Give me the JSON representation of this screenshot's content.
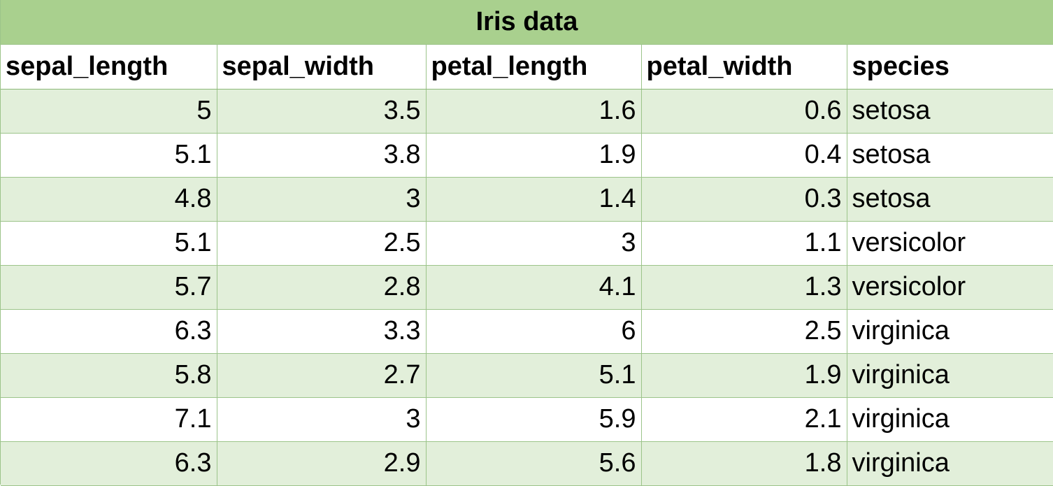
{
  "chart_data": {
    "type": "table",
    "title": "Iris data",
    "columns": [
      "sepal_length",
      "sepal_width",
      "petal_length",
      "petal_width",
      "species"
    ],
    "rows": [
      [
        "5",
        "3.5",
        "1.6",
        "0.6",
        "setosa"
      ],
      [
        "5.1",
        "3.8",
        "1.9",
        "0.4",
        "setosa"
      ],
      [
        "4.8",
        "3",
        "1.4",
        "0.3",
        "setosa"
      ],
      [
        "5.1",
        "2.5",
        "3",
        "1.1",
        "versicolor"
      ],
      [
        "5.7",
        "2.8",
        "4.1",
        "1.3",
        "versicolor"
      ],
      [
        "6.3",
        "3.3",
        "6",
        "2.5",
        "virginica"
      ],
      [
        "5.8",
        "2.7",
        "5.1",
        "1.9",
        "virginica"
      ],
      [
        "7.1",
        "3",
        "5.9",
        "2.1",
        "virginica"
      ],
      [
        "6.3",
        "2.9",
        "5.6",
        "1.8",
        "virginica"
      ]
    ]
  },
  "colors": {
    "title_band": "#a9d08e",
    "row_band": "#e2efda",
    "grid": "#9cc48a"
  }
}
